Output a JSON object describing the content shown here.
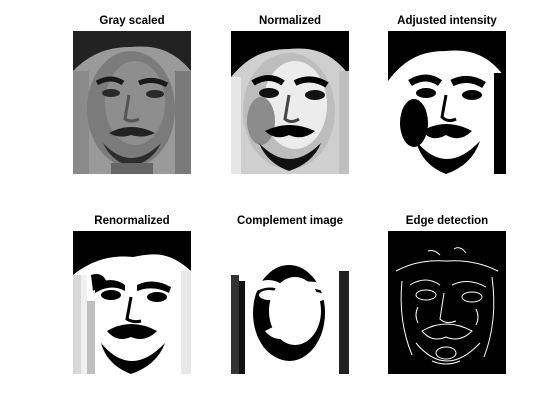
{
  "figure": {
    "panels": [
      {
        "title": "Gray scaled",
        "icon": "grayscale-face-image"
      },
      {
        "title": "Normalized",
        "icon": "normalized-face-image"
      },
      {
        "title": "Adjusted intensity",
        "icon": "adjusted-intensity-face-image"
      },
      {
        "title": "Renormalized",
        "icon": "renormalized-face-image"
      },
      {
        "title": "Complement image",
        "icon": "complement-face-image"
      },
      {
        "title": "Edge detection",
        "icon": "edge-detection-face-image"
      }
    ]
  }
}
